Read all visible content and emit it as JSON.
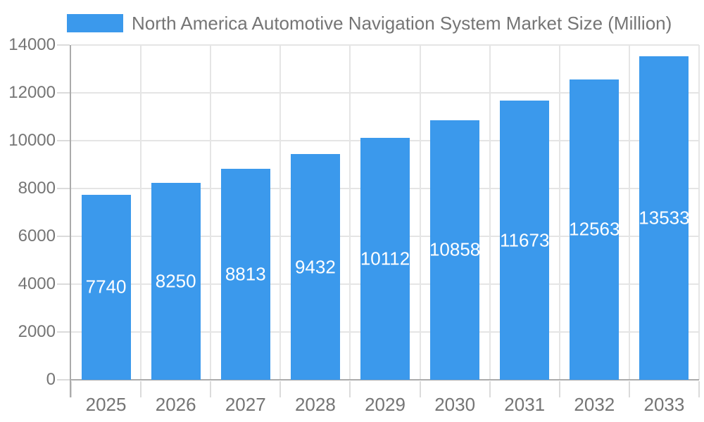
{
  "legend": {
    "position": "top",
    "items": [
      {
        "label": "North America Automotive Navigation System Market Size (Million)",
        "swatch_color": "#3B99EC"
      }
    ]
  },
  "chart_data": {
    "type": "bar",
    "title": "North America Automotive Navigation System Market Size (Million)",
    "categories": [
      "2025",
      "2026",
      "2027",
      "2028",
      "2029",
      "2030",
      "2031",
      "2032",
      "2033"
    ],
    "values": [
      7740,
      8250,
      8813,
      9432,
      10112,
      10858,
      11673,
      12563,
      13533
    ],
    "xlabel": "",
    "ylabel": "",
    "ylim": [
      0,
      14000
    ],
    "yticks": [
      0,
      2000,
      4000,
      6000,
      8000,
      10000,
      12000,
      14000
    ],
    "grid": true,
    "legend_position": "top",
    "value_label_position": "inside-center",
    "colors": {
      "bar": "#3B99EC",
      "value_label": "#FFFFFF",
      "axis_text": "#757575",
      "grid_line": "#E5E5E5",
      "axis_line": "#ABABAB",
      "tick_line": "#DBDBDB",
      "background": "#FFFFFF"
    }
  }
}
